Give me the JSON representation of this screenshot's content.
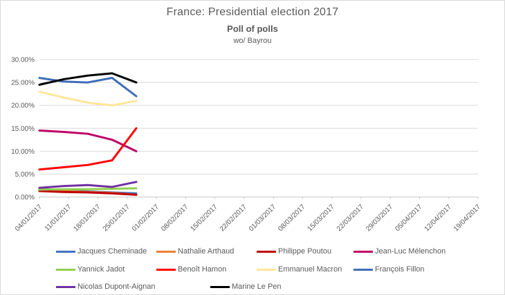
{
  "chart_data": {
    "type": "line",
    "title": "France: Presidential election 2017",
    "subtitle": "Poll of polls",
    "note": "wo/ Bayrou",
    "xlabel": "",
    "ylabel": "",
    "unit": "percent",
    "grid": true,
    "legend_position": "bottom",
    "ylim": [
      0,
      30
    ],
    "y_ticks": [
      "30.00%",
      "25.00%",
      "20.00%",
      "15.00%",
      "10.00%",
      "5.00%",
      "0.00%"
    ],
    "x_labels": [
      "04/01/2017",
      "11/01/2017",
      "18/01/2017",
      "25/01/2017",
      "01/02/2017",
      "08/02/2017",
      "15/02/2017",
      "22/02/2017",
      "01/03/2017",
      "08/03/2017",
      "15/03/2017",
      "22/03/2017",
      "29/03/2017",
      "05/04/2017",
      "12/04/2017",
      "19/04/2017"
    ],
    "data_x": [
      "04/01/2017",
      "11/01/2017",
      "18/01/2017",
      "25/01/2017",
      "01/02/2017"
    ],
    "series": [
      {
        "name": "Jacques Cheminade",
        "color": "#4472C4",
        "values": [
          1.8,
          1.5,
          1.2,
          1.0,
          0.8
        ]
      },
      {
        "name": "Nathalie Arthaud",
        "color": "#ED7D31",
        "values": [
          1.6,
          1.3,
          1.1,
          0.9,
          0.5
        ]
      },
      {
        "name": "Philippe Poutou",
        "color": "#C00000",
        "values": [
          1.3,
          1.1,
          1.0,
          0.8,
          0.5
        ]
      },
      {
        "name": "Jean-Luc Mélenchon",
        "color": "#BE0066",
        "values": [
          14.5,
          14.2,
          13.8,
          12.5,
          10.0
        ]
      },
      {
        "name": "Yannick Jadot",
        "color": "#92D050",
        "values": [
          1.6,
          1.7,
          1.7,
          1.8,
          1.9
        ]
      },
      {
        "name": "Benoît Hamon",
        "color": "#FF0000",
        "values": [
          6.0,
          6.5,
          7.0,
          8.0,
          15.0
        ]
      },
      {
        "name": "Emmanuel Macron",
        "color": "#FFE699",
        "values": [
          23.0,
          21.7,
          20.6,
          20.0,
          21.0
        ]
      },
      {
        "name": "François Fillon",
        "color": "#3E6DB5",
        "values": [
          26.0,
          25.2,
          25.0,
          26.0,
          22.0
        ]
      },
      {
        "name": "Nicolas Dupont-Aignan",
        "color": "#7030A0",
        "values": [
          2.0,
          2.4,
          2.6,
          2.2,
          3.3
        ]
      },
      {
        "name": "Marine Le Pen",
        "color": "#000000",
        "values": [
          24.5,
          25.7,
          26.5,
          27.0,
          25.0
        ]
      }
    ],
    "colors": {
      "text": "#595959",
      "gridline": "#D9D9D9",
      "axis": "#C9C9C9"
    }
  }
}
